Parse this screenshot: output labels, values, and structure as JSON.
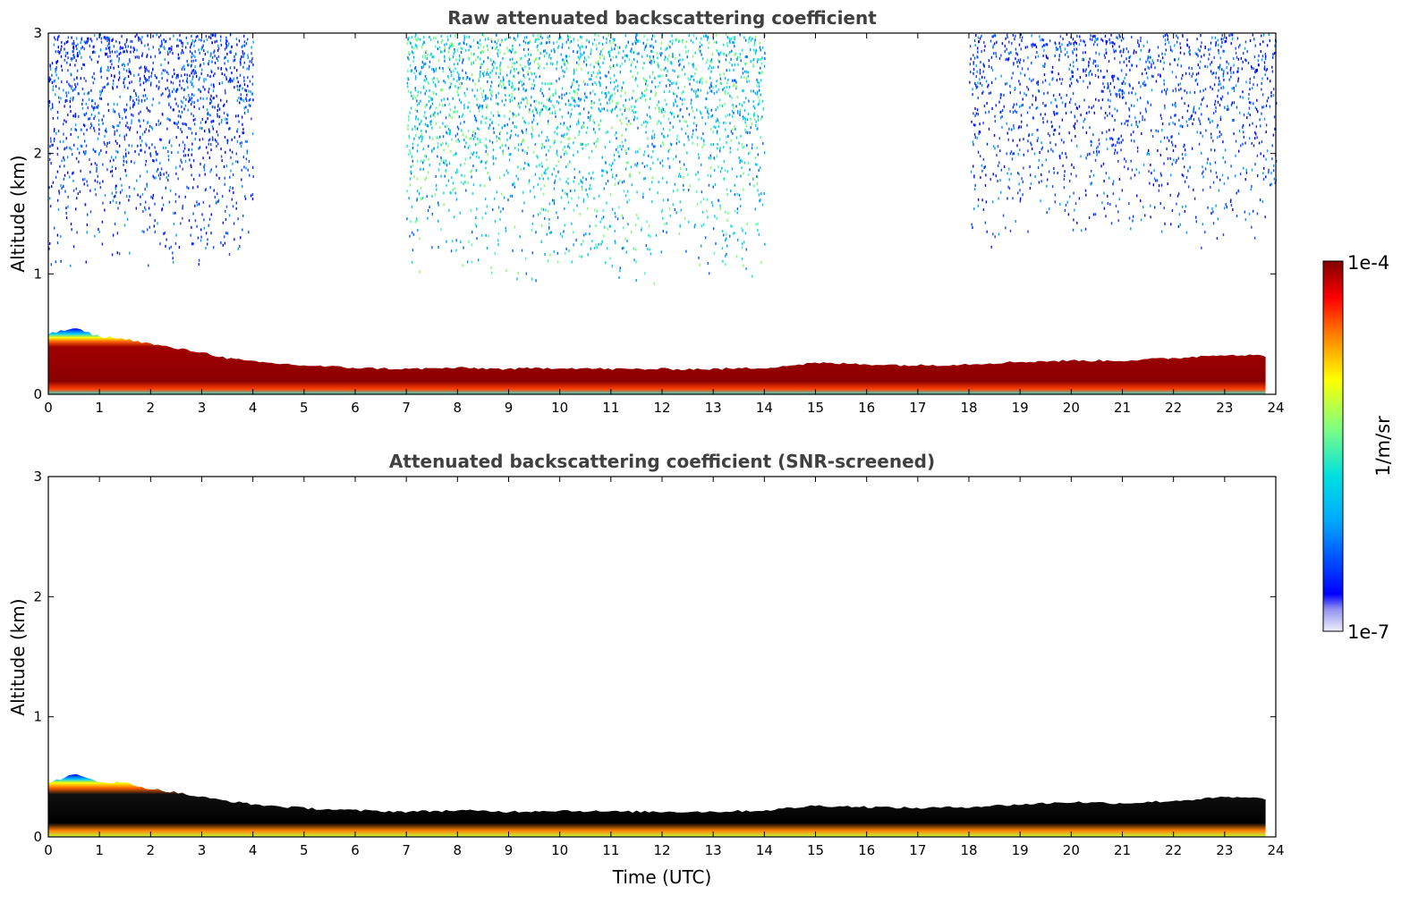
{
  "chart_data": [
    {
      "type": "heatmap",
      "title": "Raw attenuated backscattering coefficient",
      "xlabel": "",
      "ylabel": "Altitude (km)",
      "xlim": [
        0,
        24
      ],
      "ylim": [
        0,
        3
      ],
      "x_ticks": [
        "0",
        "1",
        "2",
        "3",
        "4",
        "5",
        "6",
        "7",
        "8",
        "9",
        "10",
        "11",
        "12",
        "13",
        "14",
        "15",
        "16",
        "17",
        "18",
        "19",
        "20",
        "21",
        "22",
        "23",
        "24"
      ],
      "y_ticks": [
        "0",
        "1",
        "2",
        "3"
      ],
      "boundary_layer_top_km": {
        "x": [
          0,
          0.5,
          1.0,
          1.5,
          2.0,
          2.5,
          3.0,
          3.5,
          4.0,
          5.0,
          6.0,
          7.0,
          8.0,
          9.0,
          10.0,
          11.0,
          12.0,
          13.0,
          14.0,
          15.0,
          16.0,
          17.0,
          18.0,
          19.0,
          20.0,
          21.0,
          22.0,
          23.0,
          23.8
        ],
        "y": [
          0.5,
          0.55,
          0.48,
          0.46,
          0.42,
          0.38,
          0.35,
          0.3,
          0.27,
          0.24,
          0.22,
          0.21,
          0.22,
          0.21,
          0.22,
          0.21,
          0.21,
          0.21,
          0.22,
          0.26,
          0.25,
          0.24,
          0.25,
          0.27,
          0.28,
          0.28,
          0.3,
          0.33,
          0.32
        ]
      },
      "noise_regions": [
        {
          "x": [
            0,
            4
          ],
          "y": [
            1.0,
            3.0
          ],
          "level": "low"
        },
        {
          "x": [
            7,
            14
          ],
          "y": [
            0.9,
            3.0
          ],
          "level": "medium"
        },
        {
          "x": [
            18,
            24
          ],
          "y": [
            1.2,
            3.0
          ],
          "level": "low"
        }
      ],
      "data_end_hour": 23.8
    },
    {
      "type": "heatmap",
      "title": "Attenuated backscattering coefficient (SNR-screened)",
      "xlabel": "Time (UTC)",
      "ylabel": "Altitude (km)",
      "xlim": [
        0,
        24
      ],
      "ylim": [
        0,
        3
      ],
      "x_ticks": [
        "0",
        "1",
        "2",
        "3",
        "4",
        "5",
        "6",
        "7",
        "8",
        "9",
        "10",
        "11",
        "12",
        "13",
        "14",
        "15",
        "16",
        "17",
        "18",
        "19",
        "20",
        "21",
        "22",
        "23",
        "24"
      ],
      "y_ticks": [
        "0",
        "1",
        "2",
        "3"
      ],
      "boundary_layer_top_km": {
        "x": [
          0,
          0.5,
          1.0,
          1.5,
          2.0,
          2.5,
          3.0,
          3.5,
          4.0,
          5.0,
          6.0,
          7.0,
          8.0,
          9.0,
          10.0,
          11.0,
          12.0,
          13.0,
          14.0,
          15.0,
          16.0,
          17.0,
          18.0,
          19.0,
          20.0,
          21.0,
          22.0,
          23.0,
          23.8
        ],
        "y": [
          0.45,
          0.52,
          0.46,
          0.45,
          0.4,
          0.37,
          0.33,
          0.3,
          0.27,
          0.24,
          0.22,
          0.21,
          0.22,
          0.21,
          0.22,
          0.21,
          0.21,
          0.21,
          0.22,
          0.26,
          0.25,
          0.24,
          0.25,
          0.27,
          0.29,
          0.28,
          0.3,
          0.33,
          0.32
        ]
      },
      "noise_regions": [],
      "data_end_hour": 23.8
    }
  ],
  "colorbar": {
    "max_label": "1e-4",
    "min_label": "1e-7",
    "unit_label": "1/m/sr",
    "colormap": "jet",
    "colors": [
      "#e8e8f8",
      "#0000ff",
      "#00c8ff",
      "#7fff7f",
      "#ffff00",
      "#ff7f00",
      "#ff0000",
      "#7f0000"
    ]
  }
}
